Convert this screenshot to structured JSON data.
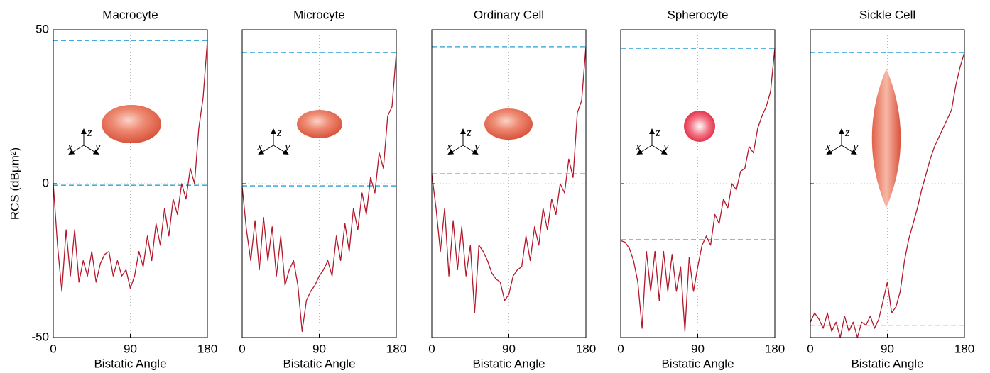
{
  "chart_data": [
    {
      "type": "line",
      "title": "Macrocyte",
      "xlabel": "Bistatic Angle",
      "ylabel": "RCS (dBμm²)",
      "annotations": [
        "x",
        "y",
        "z"
      ],
      "x": [
        0,
        5,
        10,
        15,
        20,
        25,
        30,
        35,
        40,
        45,
        50,
        55,
        60,
        65,
        70,
        75,
        80,
        85,
        90,
        95,
        100,
        105,
        110,
        115,
        120,
        125,
        130,
        135,
        140,
        145,
        150,
        155,
        160,
        165,
        170,
        175,
        180
      ],
      "series": [
        {
          "color": "#b2182b",
          "values": [
            0,
            -20,
            -35,
            -15,
            -30,
            -15,
            -32,
            -25,
            -30,
            -22,
            -32,
            -26,
            -23,
            -22,
            -30,
            -25,
            -30,
            -28,
            -34,
            -30,
            -22,
            -27,
            -17,
            -25,
            -13,
            -20,
            -8,
            -17,
            -5,
            -10,
            0,
            -5,
            5,
            0,
            18,
            28,
            46.5
          ]
        }
      ],
      "hlines": [
        46.5,
        -0.5
      ],
      "hline_color": "#2a9fd6",
      "xlim": [
        0,
        180
      ],
      "ylim": [
        -50,
        50
      ],
      "xticks": [
        0,
        90,
        180
      ],
      "yticks": [
        -50,
        0,
        50
      ],
      "show_ytick_labels": true,
      "grid": true
    },
    {
      "type": "line",
      "title": "Microcyte",
      "xlabel": "Bistatic Angle",
      "annotations": [
        "x",
        "y",
        "z"
      ],
      "x": [
        0,
        5,
        10,
        15,
        20,
        25,
        30,
        35,
        40,
        45,
        50,
        55,
        60,
        65,
        70,
        75,
        80,
        85,
        90,
        95,
        100,
        105,
        110,
        115,
        120,
        125,
        130,
        135,
        140,
        145,
        150,
        155,
        160,
        165,
        170,
        175,
        180
      ],
      "series": [
        {
          "color": "#b2182b",
          "values": [
            -1,
            -15,
            -25,
            -12,
            -28,
            -11,
            -25,
            -14,
            -30,
            -17,
            -33,
            -28,
            -25,
            -33,
            -48,
            -38,
            -35,
            -33,
            -30,
            -28,
            -25,
            -30,
            -17,
            -25,
            -13,
            -22,
            -8,
            -15,
            -3,
            -10,
            2,
            -3,
            10,
            5,
            22,
            25,
            42.6
          ]
        }
      ],
      "hlines": [
        42.6,
        -0.7
      ],
      "hline_color": "#2a9fd6",
      "xlim": [
        0,
        180
      ],
      "ylim": [
        -50,
        50
      ],
      "xticks": [
        0,
        90,
        180
      ],
      "yticks": [
        -50,
        0,
        50
      ],
      "show_ytick_labels": false,
      "grid": true
    },
    {
      "type": "line",
      "title": "Ordinary Cell",
      "xlabel": "Bistatic Angle",
      "annotations": [
        "x",
        "y",
        "z"
      ],
      "x": [
        0,
        5,
        10,
        15,
        20,
        25,
        30,
        35,
        40,
        45,
        50,
        55,
        60,
        65,
        70,
        75,
        80,
        85,
        90,
        95,
        100,
        105,
        110,
        115,
        120,
        125,
        130,
        135,
        140,
        145,
        150,
        155,
        160,
        165,
        170,
        175,
        180
      ],
      "series": [
        {
          "color": "#b2182b",
          "values": [
            3,
            -8,
            -22,
            -8,
            -30,
            -12,
            -28,
            -14,
            -30,
            -20,
            -42,
            -20,
            -22,
            -25,
            -29,
            -31,
            -32,
            -38,
            -36,
            -30,
            -28,
            -27,
            -17,
            -25,
            -14,
            -20,
            -8,
            -15,
            -5,
            -10,
            0,
            -3,
            8,
            2,
            23,
            27,
            44.5
          ]
        }
      ],
      "hlines": [
        44.5,
        3.2
      ],
      "hline_color": "#2a9fd6",
      "xlim": [
        0,
        180
      ],
      "ylim": [
        -50,
        50
      ],
      "xticks": [
        0,
        90,
        180
      ],
      "yticks": [
        -50,
        0,
        50
      ],
      "show_ytick_labels": false,
      "grid": true
    },
    {
      "type": "line",
      "title": "Spherocyte",
      "xlabel": "Bistatic Angle",
      "annotations": [
        "x",
        "y",
        "z"
      ],
      "x": [
        0,
        5,
        10,
        15,
        20,
        25,
        30,
        35,
        40,
        45,
        50,
        55,
        60,
        65,
        70,
        75,
        80,
        85,
        90,
        95,
        100,
        105,
        110,
        115,
        120,
        125,
        130,
        135,
        140,
        145,
        150,
        155,
        160,
        165,
        170,
        175,
        180
      ],
      "series": [
        {
          "color": "#b2182b",
          "values": [
            -18.5,
            -19,
            -21,
            -25,
            -32,
            -47,
            -22,
            -35,
            -22,
            -38,
            -22,
            -35,
            -23,
            -35,
            -27,
            -48,
            -24,
            -35,
            -27,
            -20,
            -17,
            -20,
            -10,
            -13,
            -5,
            -8,
            0,
            -2,
            4,
            5,
            12,
            10,
            18,
            22,
            25,
            30,
            44
          ]
        }
      ],
      "hlines": [
        44,
        -18.2
      ],
      "hline_color": "#2a9fd6",
      "xlim": [
        0,
        180
      ],
      "ylim": [
        -50,
        50
      ],
      "xticks": [
        0,
        90,
        180
      ],
      "yticks": [
        -50,
        0,
        50
      ],
      "show_ytick_labels": false,
      "grid": true
    },
    {
      "type": "line",
      "title": "Sickle Cell",
      "xlabel": "Bistatic Angle",
      "annotations": [
        "x",
        "y",
        "z"
      ],
      "x": [
        0,
        5,
        10,
        15,
        20,
        25,
        30,
        35,
        40,
        45,
        50,
        55,
        60,
        65,
        70,
        75,
        80,
        85,
        90,
        95,
        100,
        105,
        110,
        115,
        120,
        125,
        130,
        135,
        140,
        145,
        150,
        155,
        160,
        165,
        170,
        175,
        180
      ],
      "series": [
        {
          "color": "#b2182b",
          "values": [
            -45,
            -42,
            -44,
            -47,
            -42,
            -48,
            -45,
            -50,
            -43,
            -48,
            -45,
            -50,
            -45,
            -46,
            -43,
            -47,
            -44,
            -38,
            -32,
            -42,
            -40,
            -35,
            -25,
            -18,
            -13,
            -8,
            -2,
            3,
            8,
            12,
            15,
            18,
            21,
            24,
            32,
            38,
            42.6
          ]
        }
      ],
      "hlines": [
        42.6,
        -46
      ],
      "hline_color": "#2a9fd6",
      "xlim": [
        0,
        180
      ],
      "ylim": [
        -50,
        50
      ],
      "xticks": [
        0,
        90,
        180
      ],
      "yticks": [
        -50,
        0,
        50
      ],
      "show_ytick_labels": false,
      "grid": true
    }
  ]
}
